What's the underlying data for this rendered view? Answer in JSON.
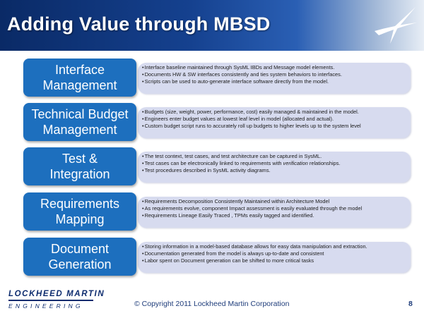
{
  "slide": {
    "title": "Adding Value through MBSD",
    "copyright": "© Copyright 2011 Lockheed Martin Corporation",
    "page_number": "8",
    "logo": {
      "name": "LOCKHEED MARTIN",
      "subtitle": "ENGINEERING"
    }
  },
  "rows": [
    {
      "label_lines": [
        "Interface",
        "Management"
      ],
      "bullets": [
        "Interface baseline maintained through SysML IBDs and Message model elements.",
        "Documents HW & SW interfaces consistently and ties system behaviors to interfaces.",
        "Scripts can be used to auto-generate interface software directly from the model."
      ]
    },
    {
      "label_lines": [
        "Technical Budget",
        "Management"
      ],
      "bullets": [
        "Budgets (size, weight, power, performance, cost) easily managed & maintained in the model.",
        "Engineers enter budget values at lowest leaf level in model (allocated and actual).",
        "Custom budget script runs to accurately roll up budgets to higher levels up to the system level"
      ]
    },
    {
      "label_lines": [
        "Test &",
        "Integration"
      ],
      "bullets": [
        "The test context, test cases, and test architecture  can be captured in SysML.",
        "Test cases can be electronically linked to requirements  with ",
        "Test procedures described in SysML activity diagrams."
      ],
      "bullet2_em": "verification",
      "bullet2_tail": " relationships."
    },
    {
      "label_lines": [
        "Requirements",
        "Mapping"
      ],
      "bullets": [
        "Requirements Decomposition Consistently Maintained within Architecture Model",
        "As requirements evolve, component Impact assessment is easily evaluated through the model",
        "Requirements Lineage Easily Traced , TPMs easily tagged and identified."
      ]
    },
    {
      "label_lines": [
        "Document",
        "Generation"
      ],
      "bullets": [
        "Storing information in a model-based database allows for easy data manipulation and extraction.",
        "Documentation generated from the model is always up-to-date and consistent",
        "Labor spent on Document generation can be shifted to more critical tasks"
      ]
    }
  ]
}
